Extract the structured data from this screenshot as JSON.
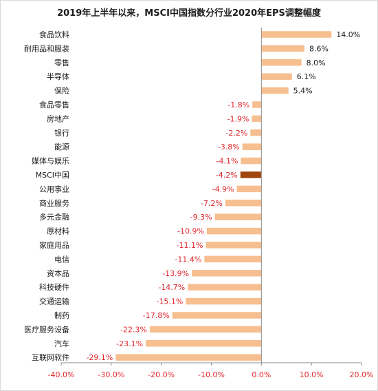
{
  "chart_data": {
    "type": "bar",
    "orientation": "horizontal",
    "title": "2019年上半年以来，MSCI中国指数分行业2020年EPS调整幅度",
    "xlabel": "",
    "ylabel": "",
    "xlim": [
      -40.0,
      20.0
    ],
    "x_ticks": [
      "-40.0%",
      "-30.0%",
      "-20.0%",
      "-10.0%",
      "0.0%",
      "10.0%",
      "20.0%"
    ],
    "grid": false,
    "legend": "none",
    "categories": [
      "食品饮料",
      "耐用品和服装",
      "零售",
      "半导体",
      "保险",
      "食品零售",
      "房地产",
      "银行",
      "能源",
      "媒体与娱乐",
      "MSCI中国",
      "公用事业",
      "商业服务",
      "多元金融",
      "原材料",
      "家庭用品",
      "电信",
      "资本品",
      "科技硬件",
      "交通运输",
      "制药",
      "医疗服务设备",
      "汽车",
      "互联网软件"
    ],
    "values": [
      14.0,
      8.6,
      8.0,
      6.1,
      5.4,
      -1.8,
      -1.9,
      -2.2,
      -3.8,
      -4.1,
      -4.2,
      -4.9,
      -7.2,
      -9.3,
      -10.9,
      -11.1,
      -11.4,
      -13.9,
      -14.7,
      -15.1,
      -17.8,
      -22.3,
      -23.1,
      -29.1
    ],
    "value_labels": [
      "14.0%",
      "8.6%",
      "8.0%",
      "6.1%",
      "5.4%",
      "-1.8%",
      "-1.9%",
      "-2.2%",
      "-3.8%",
      "-4.1%",
      "-4.2%",
      "-4.9%",
      "-7.2%",
      "-9.3%",
      "-10.9%",
      "-11.1%",
      "-11.4%",
      "-13.9%",
      "-14.7%",
      "-15.1%",
      "-17.8%",
      "-22.3%",
      "-23.1%",
      "-29.1%"
    ],
    "highlight_category": "MSCI中国",
    "colors": {
      "bar": "#f7bf8f",
      "highlight_bar": "#a0470e",
      "positive_label": "#1a1a1a",
      "negative_label": "#e0262b",
      "axis": "#8c8c8c",
      "tick_label_negative": "#e0262b",
      "tick_label_positive": "#e0262b"
    }
  }
}
